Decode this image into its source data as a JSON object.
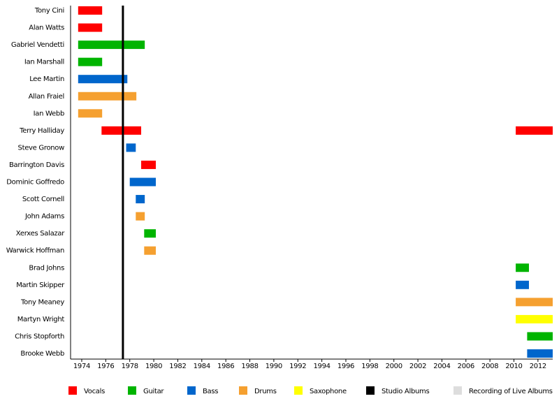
{
  "chart_data": {
    "type": "timeline",
    "categories": [
      "Tony Cini",
      "Alan Watts",
      "Gabriel Vendetti",
      "Ian Marshall",
      "Lee Martin",
      "Allan Fraiel",
      "Ian Webb",
      "Terry Halliday",
      "Steve Gronow",
      "Barrington Davis",
      "Dominic Goffredo",
      "Scott Cornell",
      "John Adams",
      "Xerxes Salazar",
      "Warwick Hoffman",
      "Brad Johns",
      "Martin Skipper",
      "Tony Meaney",
      "Martyn Wright",
      "Chris Stopforth",
      "Brooke Webb"
    ],
    "xlim": [
      1973.07,
      2013.23
    ],
    "xticks": [
      1974,
      1976,
      1978,
      1980,
      1982,
      1984,
      1986,
      1988,
      1990,
      1992,
      1994,
      1996,
      1998,
      2000,
      2002,
      2004,
      2006,
      2008,
      2010,
      2012
    ],
    "series": [
      {
        "name": "Vocals",
        "color": "#ff0000",
        "segments": [
          {
            "category": "Tony Cini",
            "start": 1973.7,
            "end": 1975.7
          },
          {
            "category": "Alan Watts",
            "start": 1973.7,
            "end": 1975.7
          },
          {
            "category": "Terry Halliday",
            "start": 1975.65,
            "end": 1978.95
          },
          {
            "category": "Barrington Davis",
            "start": 1978.95,
            "end": 1980.17
          },
          {
            "category": "Terry Halliday",
            "start": 2010.15,
            "end": 2013.23
          }
        ]
      },
      {
        "name": "Guitar",
        "color": "#00b400",
        "segments": [
          {
            "category": "Gabriel Vendetti",
            "start": 1973.7,
            "end": 1979.25
          },
          {
            "category": "Ian Marshall",
            "start": 1973.7,
            "end": 1975.7
          },
          {
            "category": "Xerxes Salazar",
            "start": 1979.2,
            "end": 1980.17
          },
          {
            "category": "Brad Johns",
            "start": 2010.15,
            "end": 2011.25
          },
          {
            "category": "Chris Stopforth",
            "start": 2011.1,
            "end": 2013.23
          }
        ]
      },
      {
        "name": "Bass",
        "color": "#0066cc",
        "segments": [
          {
            "category": "Lee Martin",
            "start": 1973.7,
            "end": 1977.8
          },
          {
            "category": "Steve Gronow",
            "start": 1977.7,
            "end": 1978.5
          },
          {
            "category": "Dominic Goffredo",
            "start": 1978.0,
            "end": 1980.17
          },
          {
            "category": "Scott Cornell",
            "start": 1978.5,
            "end": 1979.25
          },
          {
            "category": "Martin Skipper",
            "start": 2010.15,
            "end": 2011.25
          },
          {
            "category": "Brooke Webb",
            "start": 2011.1,
            "end": 2013.23
          }
        ]
      },
      {
        "name": "Drums",
        "color": "#f5a030",
        "segments": [
          {
            "category": "Allan Fraiel",
            "start": 1973.7,
            "end": 1978.55
          },
          {
            "category": "Ian Webb",
            "start": 1973.7,
            "end": 1975.7
          },
          {
            "category": "John Adams",
            "start": 1978.5,
            "end": 1979.25
          },
          {
            "category": "Warwick Hoffman",
            "start": 1979.2,
            "end": 1980.17
          },
          {
            "category": "Tony Meaney",
            "start": 2010.15,
            "end": 2013.23
          }
        ]
      },
      {
        "name": "Saxophone",
        "color": "#ffff00",
        "segments": [
          {
            "category": "Martyn Wright",
            "start": 2010.15,
            "end": 2013.23
          }
        ]
      }
    ],
    "events": [
      {
        "name": "Studio Albums",
        "color": "#000000",
        "values": [
          1977.43
        ]
      },
      {
        "name": "Recording of Live Albums",
        "color": "#dddddd",
        "values": []
      }
    ]
  }
}
